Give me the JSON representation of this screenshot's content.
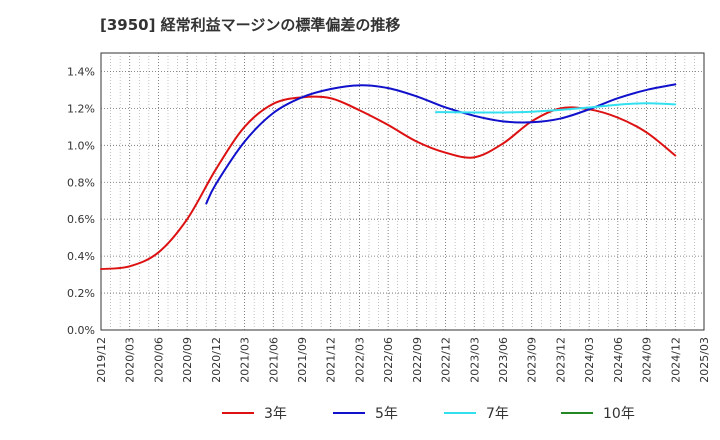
{
  "chart_data": {
    "type": "line",
    "title": "[3950]  経常利益マージンの標準偏差の推移",
    "xlabel": "",
    "ylabel": "",
    "ylim": [
      0,
      0.015
    ],
    "yticks": [
      0,
      0.002,
      0.004,
      0.006,
      0.008,
      0.01,
      0.012,
      0.014
    ],
    "ytick_labels": [
      "0.0%",
      "0.2%",
      "0.4%",
      "0.6%",
      "0.8%",
      "1.0%",
      "1.2%",
      "1.4%"
    ],
    "xtick_labels": [
      "2019/12",
      "2020/03",
      "2020/06",
      "2020/09",
      "2020/12",
      "2021/03",
      "2021/06",
      "2021/09",
      "2021/12",
      "2022/03",
      "2022/06",
      "2022/09",
      "2022/12",
      "2023/03",
      "2023/06",
      "2023/09",
      "2023/12",
      "2024/03",
      "2024/06",
      "2024/09",
      "2024/12",
      "2025/03"
    ],
    "grid": true,
    "legend_position": "bottom",
    "series": [
      {
        "name": "3年",
        "color": "#dd1111",
        "points": [
          [
            "2019/12",
            0.0033
          ],
          [
            "2020/03",
            0.00345
          ],
          [
            "2020/06",
            0.0042
          ],
          [
            "2020/09",
            0.006
          ],
          [
            "2020/12",
            0.0087
          ],
          [
            "2021/03",
            0.011
          ],
          [
            "2021/06",
            0.01225
          ],
          [
            "2021/09",
            0.0126
          ],
          [
            "2021/12",
            0.01255
          ],
          [
            "2022/03",
            0.0119
          ],
          [
            "2022/06",
            0.0111
          ],
          [
            "2022/09",
            0.0102
          ],
          [
            "2022/12",
            0.0096
          ],
          [
            "2023/03",
            0.00935
          ],
          [
            "2023/06",
            0.0101
          ],
          [
            "2023/09",
            0.0113
          ],
          [
            "2023/12",
            0.012
          ],
          [
            "2024/03",
            0.01195
          ],
          [
            "2024/06",
            0.0115
          ],
          [
            "2024/09",
            0.0107
          ],
          [
            "2024/12",
            0.00945
          ]
        ]
      },
      {
        "name": "5年",
        "color": "#1111cc",
        "points": [
          [
            "2020/11",
            0.00685
          ],
          [
            "2020/12",
            0.0079
          ],
          [
            "2021/03",
            0.0102
          ],
          [
            "2021/06",
            0.01175
          ],
          [
            "2021/09",
            0.0126
          ],
          [
            "2021/12",
            0.01305
          ],
          [
            "2022/03",
            0.01325
          ],
          [
            "2022/06",
            0.0131
          ],
          [
            "2022/09",
            0.01265
          ],
          [
            "2022/12",
            0.01205
          ],
          [
            "2023/03",
            0.0116
          ],
          [
            "2023/06",
            0.0113
          ],
          [
            "2023/09",
            0.01125
          ],
          [
            "2023/12",
            0.01145
          ],
          [
            "2024/03",
            0.01195
          ],
          [
            "2024/06",
            0.01255
          ],
          [
            "2024/09",
            0.013
          ],
          [
            "2024/12",
            0.0133
          ]
        ]
      },
      {
        "name": "7年",
        "color": "#33e0f0",
        "points": [
          [
            "2022/11",
            0.0118
          ],
          [
            "2022/12",
            0.0118
          ],
          [
            "2023/03",
            0.01178
          ],
          [
            "2023/06",
            0.01178
          ],
          [
            "2023/09",
            0.01182
          ],
          [
            "2023/12",
            0.01192
          ],
          [
            "2024/03",
            0.01205
          ],
          [
            "2024/06",
            0.0122
          ],
          [
            "2024/09",
            0.01228
          ],
          [
            "2024/12",
            0.01222
          ]
        ]
      },
      {
        "name": "10年",
        "color": "#228822",
        "points": []
      }
    ]
  }
}
